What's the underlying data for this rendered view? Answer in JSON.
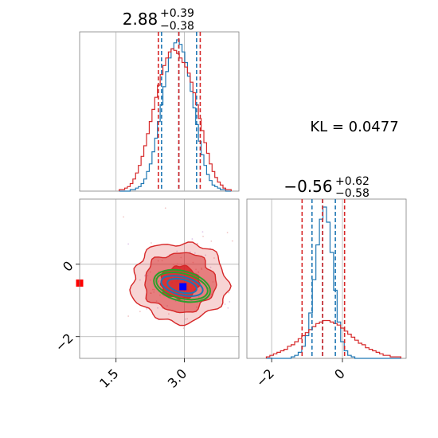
{
  "chart_data": [
    {
      "panel": "marginal-1",
      "type": "histogram",
      "title": {
        "value": "2.88",
        "upper": "+0.39",
        "lower": "−0.38"
      },
      "xlim": [
        0.7,
        4.2
      ],
      "grid": true,
      "series": [
        {
          "name": "",
          "color": "#1f77b4",
          "x": [
            1.6,
            1.66,
            1.72,
            1.78,
            1.84,
            1.9,
            1.96,
            2.02,
            2.08,
            2.14,
            2.2,
            2.26,
            2.32,
            2.38,
            2.44,
            2.5,
            2.56,
            2.62,
            2.68,
            2.74,
            2.8,
            2.86,
            2.92,
            2.98,
            3.04,
            3.1,
            3.16,
            3.22,
            3.28,
            3.34,
            3.4,
            3.46,
            3.52,
            3.58,
            3.64,
            3.7,
            3.76,
            3.82,
            3.88,
            3.94,
            4.0
          ],
          "values": [
            0,
            0,
            0,
            0,
            0.01,
            0.01,
            0.02,
            0.03,
            0.05,
            0.08,
            0.13,
            0.18,
            0.26,
            0.35,
            0.46,
            0.57,
            0.69,
            0.79,
            0.88,
            0.94,
            0.98,
            1.0,
            0.97,
            0.92,
            0.85,
            0.76,
            0.66,
            0.55,
            0.44,
            0.33,
            0.24,
            0.17,
            0.11,
            0.07,
            0.04,
            0.03,
            0.02,
            0.01,
            0.01,
            0,
            0
          ]
        },
        {
          "name": "",
          "color": "#d62728",
          "x": [
            1.6,
            1.66,
            1.72,
            1.78,
            1.84,
            1.9,
            1.96,
            2.02,
            2.08,
            2.14,
            2.2,
            2.26,
            2.32,
            2.38,
            2.44,
            2.5,
            2.56,
            2.62,
            2.68,
            2.74,
            2.8,
            2.86,
            2.92,
            2.98,
            3.04,
            3.1,
            3.16,
            3.22,
            3.28,
            3.34,
            3.4,
            3.46,
            3.52,
            3.58,
            3.64,
            3.7,
            3.76,
            3.82,
            3.88,
            3.94,
            4.0
          ],
          "values": [
            0.01,
            0.01,
            0.02,
            0.03,
            0.05,
            0.08,
            0.12,
            0.17,
            0.23,
            0.3,
            0.38,
            0.46,
            0.54,
            0.62,
            0.7,
            0.77,
            0.83,
            0.88,
            0.92,
            0.94,
            0.93,
            0.91,
            0.88,
            0.85,
            0.82,
            0.78,
            0.72,
            0.65,
            0.57,
            0.48,
            0.4,
            0.32,
            0.25,
            0.18,
            0.13,
            0.09,
            0.06,
            0.04,
            0.02,
            0.01,
            0.01
          ]
        }
      ],
      "quantile_lines": [
        {
          "color": "#1f77b4",
          "x": [
            2.5,
            2.88,
            3.27
          ]
        },
        {
          "color": "#d62728",
          "x": [
            2.43,
            2.88,
            3.35
          ]
        }
      ]
    },
    {
      "panel": "marginal-2",
      "type": "histogram",
      "title": {
        "value": "−0.56",
        "upper": "+0.62",
        "lower": "−0.58"
      },
      "xlim": [
        -2.7,
        1.8
      ],
      "xticks": [
        -2,
        0
      ],
      "xtick_labels": [
        "−2",
        "0"
      ],
      "grid": true,
      "series": [
        {
          "name": "",
          "color": "#1f77b4",
          "x": [
            -2.1,
            -2.0,
            -1.9,
            -1.8,
            -1.7,
            -1.6,
            -1.5,
            -1.4,
            -1.3,
            -1.2,
            -1.1,
            -1.0,
            -0.9,
            -0.8,
            -0.7,
            -0.6,
            -0.5,
            -0.4,
            -0.3,
            -0.2,
            -0.1,
            0.0,
            0.1,
            0.2,
            0.3,
            0.4,
            0.5,
            0.6,
            0.7,
            0.8,
            0.9,
            1.0,
            1.1,
            1.2,
            1.3,
            1.4,
            1.5,
            1.6
          ],
          "values": [
            0,
            0,
            0,
            0,
            0,
            0,
            0,
            0.01,
            0.02,
            0.04,
            0.08,
            0.15,
            0.3,
            0.52,
            0.75,
            0.92,
            1.0,
            0.9,
            0.7,
            0.45,
            0.24,
            0.11,
            0.05,
            0.02,
            0.01,
            0,
            0,
            0,
            0,
            0,
            0,
            0,
            0,
            0,
            0,
            0,
            0,
            0
          ]
        },
        {
          "name": "",
          "color": "#d62728",
          "x": [
            -2.1,
            -2.0,
            -1.9,
            -1.8,
            -1.7,
            -1.6,
            -1.5,
            -1.4,
            -1.3,
            -1.2,
            -1.1,
            -1.0,
            -0.9,
            -0.8,
            -0.7,
            -0.6,
            -0.5,
            -0.4,
            -0.3,
            -0.2,
            -0.1,
            0.0,
            0.1,
            0.2,
            0.3,
            0.4,
            0.5,
            0.6,
            0.7,
            0.8,
            0.9,
            1.0,
            1.1,
            1.2,
            1.3,
            1.4,
            1.5,
            1.6
          ],
          "values": [
            0.01,
            0.02,
            0.03,
            0.04,
            0.05,
            0.06,
            0.08,
            0.09,
            0.11,
            0.13,
            0.15,
            0.17,
            0.19,
            0.21,
            0.23,
            0.24,
            0.25,
            0.25,
            0.24,
            0.23,
            0.22,
            0.2,
            0.18,
            0.16,
            0.14,
            0.12,
            0.1,
            0.09,
            0.07,
            0.06,
            0.05,
            0.04,
            0.03,
            0.02,
            0.02,
            0.01,
            0.01,
            0.01
          ]
        }
      ],
      "quantile_lines": [
        {
          "color": "#1f77b4",
          "x": [
            -0.86,
            -0.56,
            -0.2
          ]
        },
        {
          "color": "#d62728",
          "x": [
            -1.14,
            -0.56,
            0.06
          ]
        }
      ]
    },
    {
      "panel": "joint",
      "type": "contour",
      "xlim": [
        0.7,
        4.2
      ],
      "ylim": [
        -2.6,
        1.8
      ],
      "xticks": [
        1.5,
        3.0
      ],
      "xtick_labels": [
        "1.5",
        "3.0"
      ],
      "yticks": [
        0,
        -2
      ],
      "ytick_labels": [
        "0",
        "−2"
      ],
      "grid": true,
      "red_contours": {
        "color": "#d62728",
        "center": [
          2.9,
          -0.5
        ],
        "levels": [
          {
            "sx": 0.42,
            "sy": 0.45,
            "alpha": 0.85
          },
          {
            "sx": 0.78,
            "sy": 0.82,
            "alpha": 0.5
          },
          {
            "sx": 1.05,
            "sy": 1.1,
            "alpha": 0.2
          }
        ]
      },
      "gaussian_ellipses": [
        {
          "color": "#1f77b4",
          "center": [
            2.95,
            -0.6
          ],
          "rx": 0.85,
          "ry": 0.28,
          "angle_deg": -14
        },
        {
          "color": "#2ca02c",
          "center": [
            2.95,
            -0.6
          ],
          "rx": 1.05,
          "ry": 0.38,
          "angle_deg": -14
        },
        {
          "color": "#2ca02c",
          "center": [
            2.95,
            -0.6
          ],
          "rx": 1.15,
          "ry": 0.46,
          "angle_deg": -14
        },
        {
          "color": "#1f77b4",
          "center": [
            2.95,
            -0.6
          ],
          "rx": 0.6,
          "ry": 0.2,
          "angle_deg": -14
        }
      ],
      "markers": [
        {
          "color": "#0000ff",
          "x": 2.97,
          "y": -0.62
        },
        {
          "color": "#ff0000",
          "x": 0.7,
          "y": -0.52
        }
      ]
    }
  ],
  "kl_label": "KL = 0.0477"
}
